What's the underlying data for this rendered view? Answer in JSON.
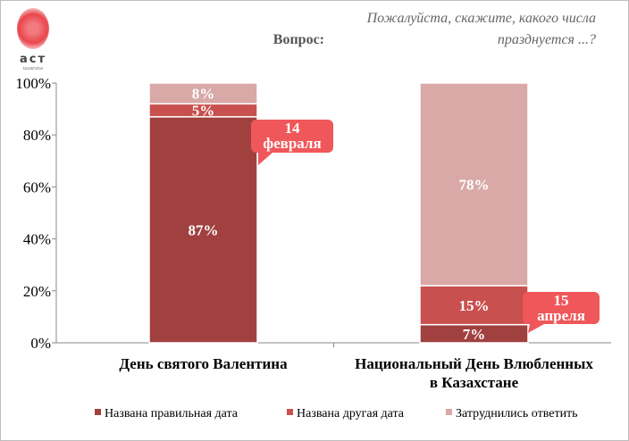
{
  "header": {
    "question_label": "Вопрос:",
    "question_text": "Пожалуйста, скажите, какого числа празднуется ...?",
    "logo_text": "аст",
    "logo_sub": "kazakhstan"
  },
  "chart_data": {
    "type": "bar",
    "stacked": true,
    "categories": [
      "День святого Валентина",
      "Национальный День Влюбленных в Казахстане"
    ],
    "category_lines": [
      [
        "День святого Валентина"
      ],
      [
        "Национальный День Влюбленных",
        "в Казахстане"
      ]
    ],
    "series": [
      {
        "name": "Названа правильная дата",
        "values": [
          87,
          7
        ],
        "color": "#a0413f"
      },
      {
        "name": "Названа другая дата",
        "values": [
          5,
          15
        ],
        "color": "#c8504e"
      },
      {
        "name": "Затруднились ответить",
        "values": [
          8,
          78
        ],
        "color": "#d9a9a8"
      }
    ],
    "ylim": [
      0,
      100
    ],
    "yticks": [
      "0%",
      "20%",
      "40%",
      "60%",
      "80%",
      "100%"
    ],
    "legend_position": "bottom",
    "annotations": [
      {
        "lines": [
          "14",
          "февраля"
        ],
        "category": 0
      },
      {
        "lines": [
          "15",
          "апреля"
        ],
        "category": 1
      }
    ],
    "callout_color": "#f0575a"
  }
}
